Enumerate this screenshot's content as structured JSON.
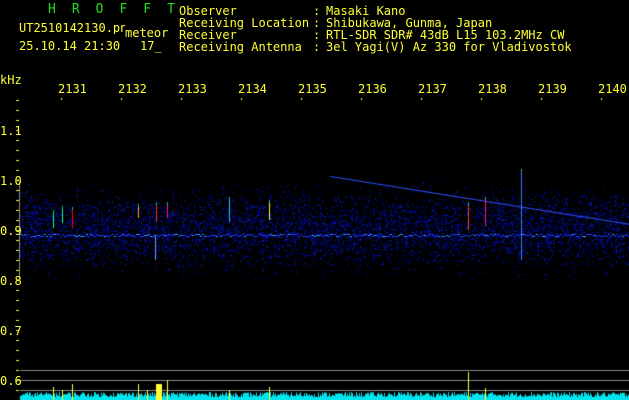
{
  "header": {
    "title": "HROFFT",
    "filename": "UT2510142130.png",
    "mode": "meteor",
    "datetime": "25.10.14 21:30",
    "counter": "17_",
    "fields": [
      {
        "label": "Observer",
        "value": "Masaki Kano"
      },
      {
        "label": "Receiving Location",
        "value": "Shibukawa, Gunma, Japan"
      },
      {
        "label": "Receiver",
        "value": "RTL-SDR SDR# 43dB L15 103.2MHz CW"
      },
      {
        "label": "Receiving Antenna",
        "value": "3el Yagi(V) Az 330 for Vladivostok"
      }
    ]
  },
  "axes": {
    "y_unit": "kHz",
    "y_ticks": [
      "1.1",
      "1.0",
      "0.9",
      "0.8",
      "0.7",
      "0.6"
    ],
    "x_ticks": [
      "2131",
      "2132",
      "2133",
      "2134",
      "2135",
      "2136",
      "2137",
      "2138",
      "2139",
      "2140"
    ]
  },
  "colors": {
    "text": "#ffff33",
    "title": "#22dd22",
    "noise": "#0a1aff",
    "level": "#00e5ee",
    "echo_peak": "#ff0000"
  }
}
